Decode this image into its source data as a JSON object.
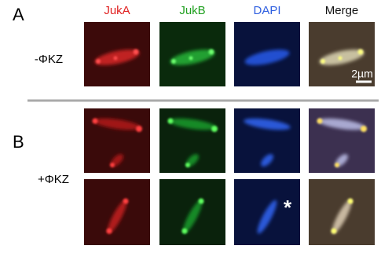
{
  "columns": [
    "JukA",
    "JukB",
    "DAPI",
    "Merge"
  ],
  "panels": [
    {
      "label": "A",
      "condition": "-ΦKZ"
    },
    {
      "label": "B",
      "condition": "+ΦKZ"
    }
  ],
  "scale_bar": "2µm",
  "marker": "*"
}
